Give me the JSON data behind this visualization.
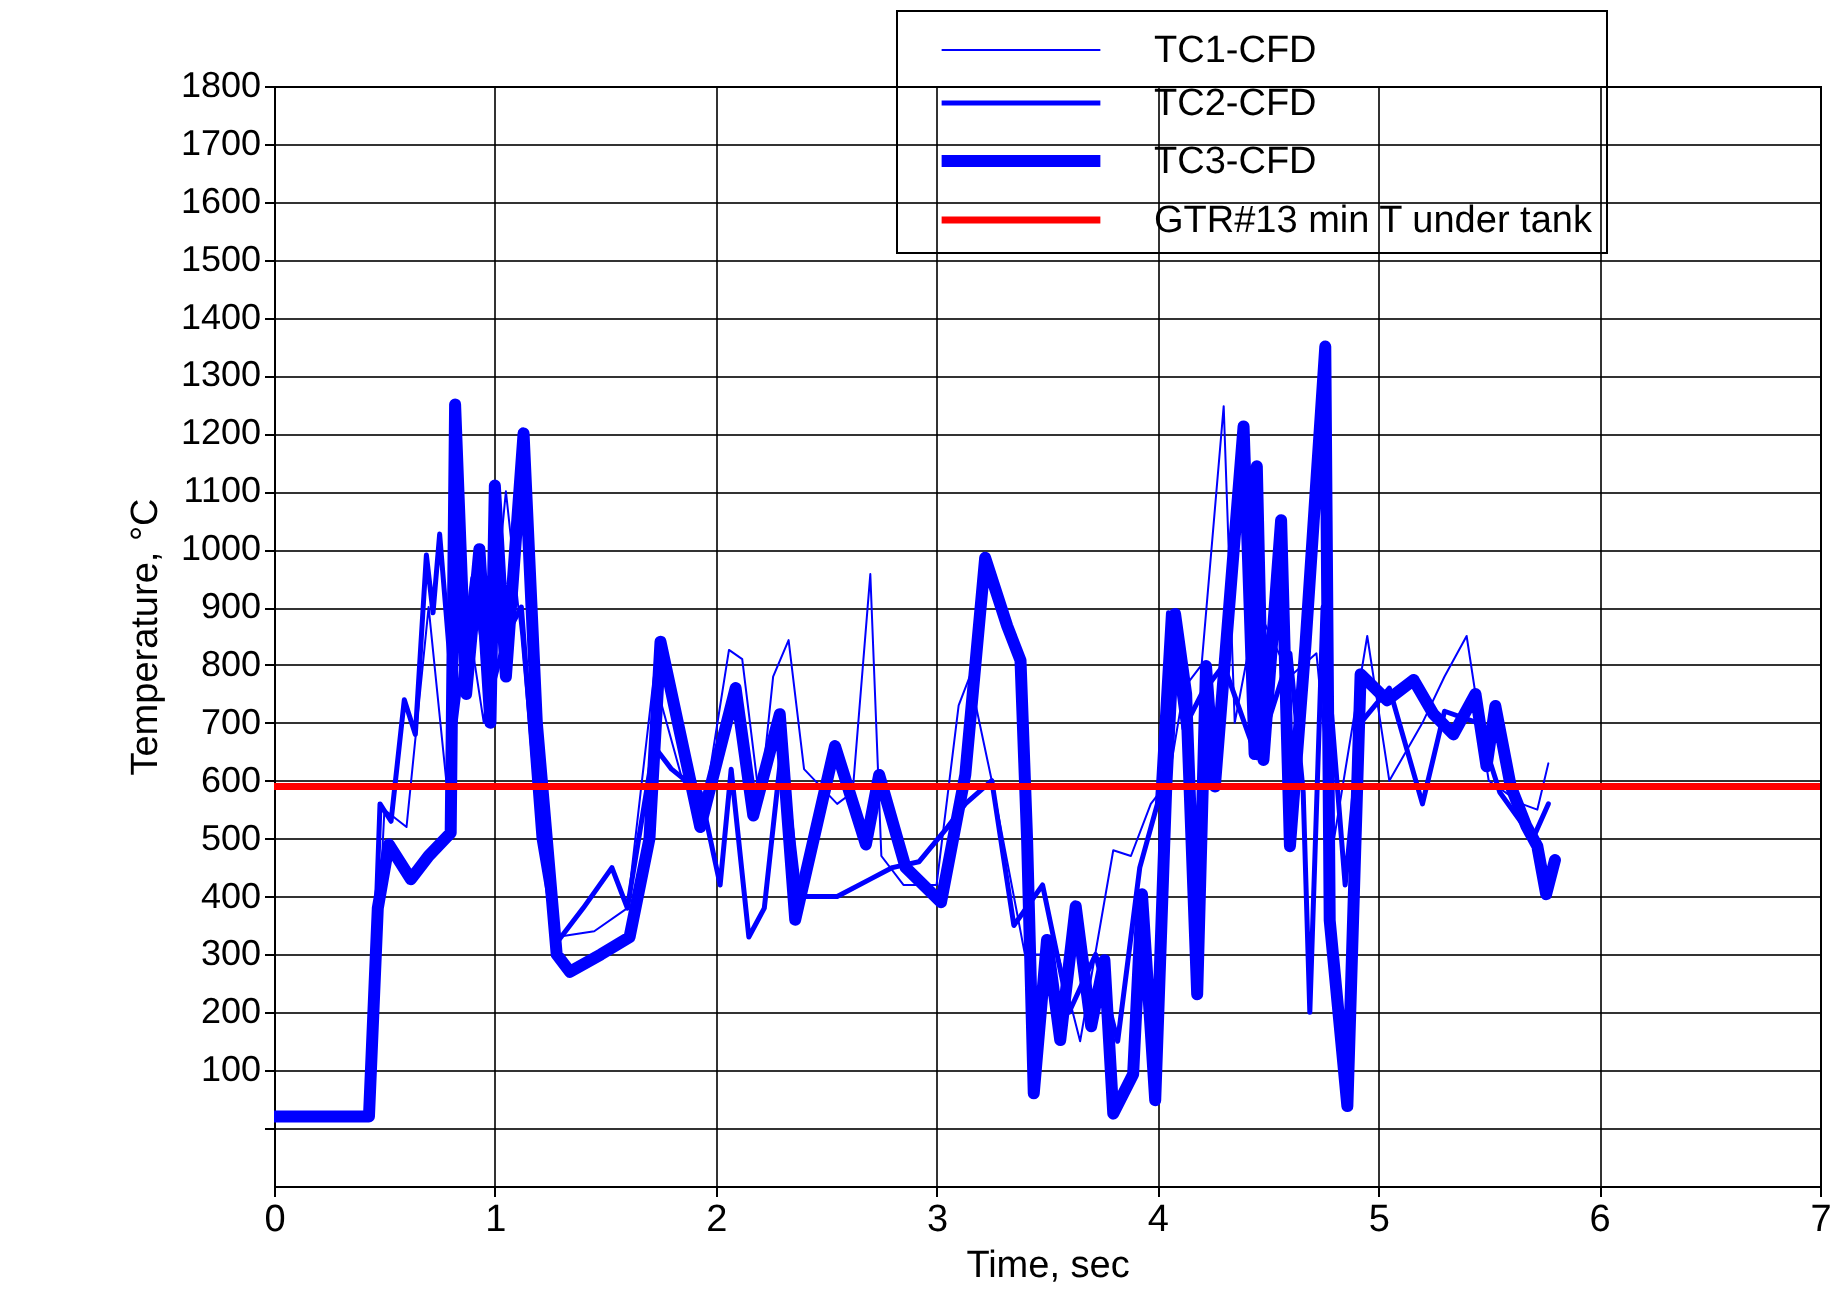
{
  "chart_data": {
    "type": "line",
    "xlabel": "Time, sec",
    "ylabel": "Temperature, °C",
    "xlim": [
      0,
      7
    ],
    "xticks": [
      0,
      1,
      2,
      3,
      4,
      5,
      6,
      7
    ],
    "ylim": [
      -100,
      1800
    ],
    "yticks": [
      {
        "value": 0,
        "label": null
      },
      100,
      200,
      300,
      400,
      500,
      600,
      700,
      800,
      900,
      1000,
      1100,
      1200,
      1300,
      1400,
      1500,
      1600,
      1700,
      1800
    ],
    "grid": true,
    "legend": "top right",
    "marker": "none",
    "line_style": "solid",
    "series": [
      {
        "name": "TC1-CFD",
        "color": "#0000ff",
        "x": [
          0,
          0.43,
          0.5,
          0.6,
          0.7,
          0.78,
          0.85,
          0.95,
          1.05,
          1.12,
          1.2,
          1.28,
          1.45,
          1.6,
          1.72,
          1.85,
          1.95,
          2.06,
          2.12,
          2.2,
          2.26,
          2.33,
          2.4,
          2.55,
          2.62,
          2.7,
          2.75,
          2.85,
          3.0,
          3.1,
          3.15,
          3.25,
          3.4,
          3.55,
          3.65,
          3.8,
          3.88,
          3.97,
          4.05,
          4.12,
          4.2,
          4.3,
          4.35,
          4.45,
          4.6,
          4.72,
          4.8,
          4.95,
          5.05,
          5.2,
          5.3,
          5.4,
          5.5,
          5.65,
          5.72,
          5.77
        ],
        "values": [
          20,
          20,
          550,
          520,
          900,
          600,
          950,
          700,
          1100,
          850,
          500,
          330,
          340,
          380,
          780,
          600,
          560,
          826,
          810,
          560,
          780,
          843,
          620,
          560,
          580,
          957,
          470,
          420,
          420,
          730,
          780,
          600,
          300,
          300,
          150,
          480,
          470,
          560,
          600,
          760,
          800,
          1247,
          700,
          900,
          780,
          820,
          500,
          850,
          600,
          700,
          780,
          850,
          600,
          560,
          550,
          630
        ]
      },
      {
        "name": "TC2-CFD",
        "color": "#0000ff",
        "x": [
          0,
          0.43,
          0.48,
          0.53,
          0.59,
          0.64,
          0.69,
          0.72,
          0.75,
          0.82,
          0.9,
          0.98,
          1.05,
          1.12,
          1.2,
          1.28,
          1.4,
          1.53,
          1.6,
          1.72,
          1.8,
          1.93,
          2.02,
          2.07,
          2.15,
          2.22,
          2.3,
          2.38,
          2.55,
          2.7,
          2.8,
          2.92,
          3.05,
          3.13,
          3.25,
          3.35,
          3.48,
          3.6,
          3.72,
          3.82,
          3.92,
          4.0,
          4.05,
          4.12,
          4.2,
          4.3,
          4.45,
          4.6,
          4.66,
          4.69,
          4.75,
          4.85,
          4.92,
          5.05,
          5.2,
          5.3,
          5.45,
          5.55,
          5.7,
          5.77
        ],
        "values": [
          20,
          20,
          560,
          530,
          740,
          680,
          990,
          890,
          1026,
          700,
          950,
          750,
          850,
          900,
          500,
          320,
          380,
          450,
          380,
          660,
          620,
          580,
          420,
          620,
          330,
          380,
          660,
          400,
          400,
          430,
          450,
          460,
          520,
          560,
          600,
          350,
          420,
          200,
          300,
          150,
          450,
          560,
          890,
          690,
          750,
          800,
          640,
          820,
          580,
          200,
          900,
          420,
          700,
          760,
          560,
          720,
          700,
          580,
          500,
          560
        ]
      },
      {
        "name": "TC3-CFD",
        "color": "#0000ff",
        "x": [
          0,
          0.43,
          0.47,
          0.52,
          0.62,
          0.7,
          0.8,
          0.82,
          0.87,
          0.93,
          0.98,
          1.0,
          1.05,
          1.13,
          1.19,
          1.28,
          1.34,
          1.48,
          1.61,
          1.7,
          1.75,
          1.93,
          2.09,
          2.17,
          2.29,
          2.36,
          2.54,
          2.68,
          2.74,
          2.86,
          3.02,
          3.13,
          3.22,
          3.32,
          3.38,
          3.41,
          3.44,
          3.5,
          3.56,
          3.63,
          3.7,
          3.76,
          3.8,
          3.89,
          3.93,
          3.99,
          4.04,
          4.08,
          4.13,
          4.18,
          4.22,
          4.26,
          4.39,
          4.44,
          4.45,
          4.48,
          4.56,
          4.6,
          4.67,
          4.76,
          4.78,
          4.86,
          4.92,
          5.04,
          5.16,
          5.25,
          5.34,
          5.44,
          5.49,
          5.53,
          5.6,
          5.67,
          5.72,
          5.76,
          5.8
        ],
        "values": [
          20,
          20,
          380,
          490,
          430,
          470,
          510,
          1250,
          750,
          1000,
          700,
          1110,
          780,
          1200,
          700,
          300,
          270,
          300,
          330,
          500,
          840,
          520,
          760,
          540,
          715,
          360,
          660,
          490,
          610,
          450,
          390,
          610,
          985,
          867,
          808,
          497,
          60,
          325,
          152,
          383,
          176,
          290,
          25,
          93,
          404,
          48,
          590,
          888,
          750,
          231,
          798,
          590,
          1212,
          646,
          1143,
          636,
          1050,
          487,
          833,
          1350,
          359,
          38,
          784,
          739,
          774,
          715,
          680,
          750,
          625,
          729,
          590,
          522,
          487,
          404,
          463
        ]
      }
    ],
    "ref_lines": [
      {
        "axis": "y",
        "value": 590,
        "label": "GTR#13 min T under tank",
        "color": "#ff0000"
      }
    ]
  }
}
